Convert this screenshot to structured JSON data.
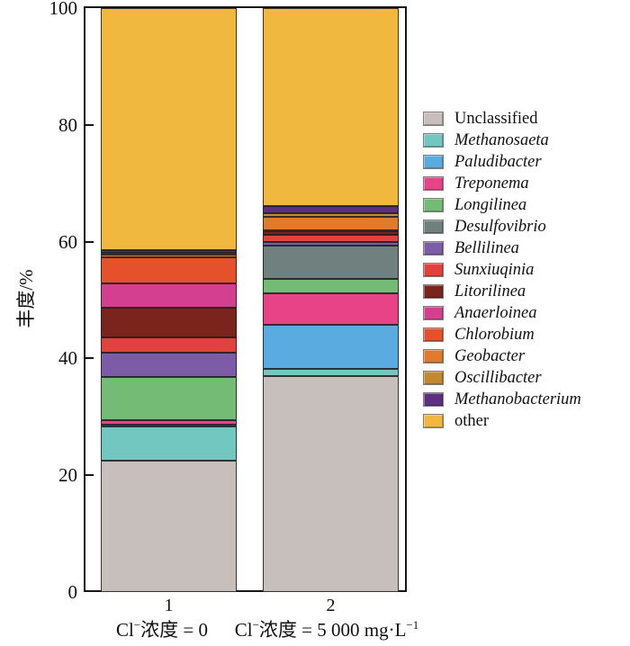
{
  "chart_data": {
    "type": "bar",
    "stacked": true,
    "title": "",
    "ylabel": "丰度/%",
    "ylim": [
      0,
      100
    ],
    "yticks": [
      0,
      20,
      40,
      60,
      80,
      100
    ],
    "grid": false,
    "legend_position": "right",
    "categories": [
      "1",
      "2"
    ],
    "category_sublabels": [
      "Cl⁻浓度 = 0",
      "Cl⁻浓度 = 5 000 mg·L⁻¹"
    ],
    "category_sublabel_parts": [
      [
        {
          "t": "Cl"
        },
        {
          "t": "−",
          "sup": true
        },
        {
          "t": "浓度 = 0"
        }
      ],
      [
        {
          "t": "Cl"
        },
        {
          "t": "−",
          "sup": true
        },
        {
          "t": "浓度 = 5 000 mg·L"
        },
        {
          "t": "−1",
          "sup": true
        }
      ]
    ],
    "values_unit": "%",
    "series": [
      {
        "name": "Unclassified",
        "italic": false,
        "color": "#c7bfbb",
        "values": [
          22.5,
          37.0
        ]
      },
      {
        "name": "Methanosaeta",
        "italic": true,
        "color": "#72c7c1",
        "values": [
          5.8,
          1.2
        ]
      },
      {
        "name": "Paludibacter",
        "italic": true,
        "color": "#5aabdf",
        "values": [
          0.4,
          7.5
        ]
      },
      {
        "name": "Treponema",
        "italic": true,
        "color": "#e84386",
        "values": [
          0.8,
          5.4
        ]
      },
      {
        "name": "Longilinea",
        "italic": true,
        "color": "#74bc76",
        "values": [
          7.3,
          2.6
        ]
      },
      {
        "name": "Desulfovibrio",
        "italic": true,
        "color": "#70807f",
        "values": [
          0.1,
          5.6
        ]
      },
      {
        "name": "Bellilinea",
        "italic": true,
        "color": "#7c5ca6",
        "values": [
          4.1,
          0.6
        ]
      },
      {
        "name": "Sunxiuqinia",
        "italic": true,
        "color": "#e2423c",
        "values": [
          2.6,
          1.3
        ]
      },
      {
        "name": "Litorilinea",
        "italic": true,
        "color": "#7b231d",
        "values": [
          5.1,
          0.6
        ]
      },
      {
        "name": "Anaerloinea",
        "italic": true,
        "color": "#d4408f",
        "values": [
          4.1,
          0.1
        ]
      },
      {
        "name": "Chlorobium",
        "italic": true,
        "color": "#e5512b",
        "values": [
          4.5,
          0.1
        ]
      },
      {
        "name": "Geobacter",
        "italic": true,
        "color": "#e07b2e",
        "values": [
          0.5,
          2.2
        ]
      },
      {
        "name": "Oscillibacter",
        "italic": true,
        "color": "#c28a2f",
        "values": [
          0.3,
          0.6
        ]
      },
      {
        "name": "Methanobacterium",
        "italic": true,
        "color": "#5e2f80",
        "values": [
          0.5,
          1.3
        ]
      },
      {
        "name": "other",
        "italic": false,
        "color": "#f0b83f",
        "values": [
          41.4,
          33.9
        ]
      }
    ]
  }
}
